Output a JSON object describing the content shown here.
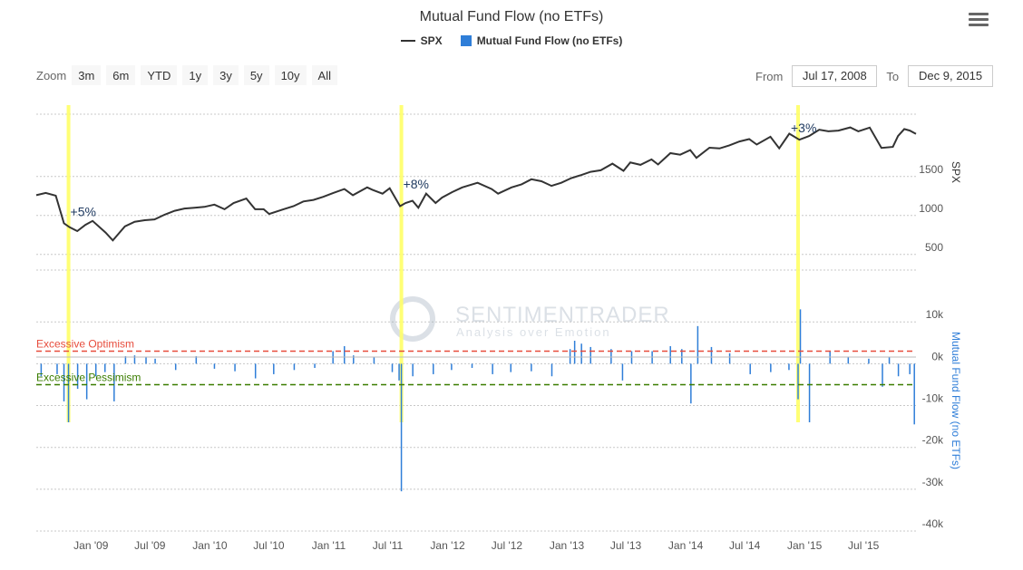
{
  "header": {
    "title": "Mutual Fund Flow (no ETFs)",
    "menu_icon": "hamburger-menu-icon"
  },
  "legend": [
    {
      "label": "SPX",
      "color": "#333333",
      "shape": "line"
    },
    {
      "label": "Mutual Fund Flow (no ETFs)",
      "color": "#2f7ed8",
      "shape": "box"
    }
  ],
  "zoom": {
    "label": "Zoom",
    "buttons": [
      "3m",
      "6m",
      "YTD",
      "1y",
      "3y",
      "5y",
      "10y",
      "All"
    ]
  },
  "range": {
    "from_label": "From",
    "from_value": "Jul 17, 2008",
    "to_label": "To",
    "to_value": "Dec 9, 2015"
  },
  "watermark": {
    "name": "SENTIMENTRADER",
    "tagline": "Analysis over Emotion"
  },
  "chart_data": [
    {
      "type": "line",
      "name": "SPX",
      "ylabel": "SPX",
      "y_ticks": [
        500,
        1000,
        1500
      ],
      "ylim": [
        300,
        2300
      ],
      "color": "#333333",
      "x": [
        "2008-07-17",
        "2008-08-15",
        "2008-09-15",
        "2008-10-10",
        "2008-10-27",
        "2008-11-20",
        "2008-12-15",
        "2009-01-06",
        "2009-02-15",
        "2009-03-09",
        "2009-04-15",
        "2009-05-15",
        "2009-06-15",
        "2009-07-15",
        "2009-08-15",
        "2009-09-15",
        "2009-10-15",
        "2009-11-15",
        "2009-12-15",
        "2010-01-15",
        "2010-02-15",
        "2010-03-15",
        "2010-04-23",
        "2010-05-20",
        "2010-06-15",
        "2010-07-02",
        "2010-08-15",
        "2010-09-15",
        "2010-10-15",
        "2010-11-15",
        "2010-12-15",
        "2011-01-15",
        "2011-02-18",
        "2011-03-16",
        "2011-04-29",
        "2011-05-15",
        "2011-06-15",
        "2011-07-07",
        "2011-08-08",
        "2011-08-25",
        "2011-09-15",
        "2011-10-03",
        "2011-10-27",
        "2011-11-25",
        "2011-12-15",
        "2012-01-15",
        "2012-02-15",
        "2012-04-02",
        "2012-05-15",
        "2012-06-04",
        "2012-07-15",
        "2012-08-15",
        "2012-09-14",
        "2012-10-15",
        "2012-11-15",
        "2012-12-15",
        "2013-01-15",
        "2013-02-15",
        "2013-03-15",
        "2013-04-15",
        "2013-05-21",
        "2013-06-24",
        "2013-07-15",
        "2013-08-15",
        "2013-09-18",
        "2013-10-08",
        "2013-11-15",
        "2013-12-15",
        "2014-01-15",
        "2014-02-03",
        "2014-03-15",
        "2014-04-15",
        "2014-05-15",
        "2014-06-15",
        "2014-07-15",
        "2014-08-07",
        "2014-09-18",
        "2014-10-15",
        "2014-11-15",
        "2014-12-16",
        "2015-01-15",
        "2015-02-15",
        "2015-03-15",
        "2015-04-15",
        "2015-05-21",
        "2015-06-15",
        "2015-07-20",
        "2015-08-25",
        "2015-09-29",
        "2015-10-15",
        "2015-11-03",
        "2015-11-20",
        "2015-12-09"
      ],
      "values": [
        1260,
        1290,
        1255,
        900,
        850,
        800,
        880,
        930,
        780,
        680,
        860,
        920,
        940,
        950,
        1010,
        1060,
        1090,
        1100,
        1110,
        1140,
        1080,
        1160,
        1217,
        1080,
        1080,
        1020,
        1080,
        1120,
        1180,
        1200,
        1240,
        1290,
        1340,
        1260,
        1360,
        1330,
        1280,
        1350,
        1120,
        1160,
        1190,
        1100,
        1280,
        1160,
        1230,
        1300,
        1360,
        1420,
        1340,
        1280,
        1360,
        1400,
        1465,
        1440,
        1380,
        1420,
        1480,
        1520,
        1560,
        1580,
        1665,
        1573,
        1680,
        1650,
        1720,
        1655,
        1800,
        1780,
        1840,
        1740,
        1870,
        1860,
        1900,
        1950,
        1980,
        1910,
        2010,
        1862,
        2050,
        1972,
        2020,
        2100,
        2080,
        2090,
        2130,
        2080,
        2128,
        1867,
        1880,
        2020,
        2109,
        2090,
        2047
      ]
    },
    {
      "type": "bar",
      "name": "Mutual Fund Flow (no ETFs)",
      "ylabel": "Mutual Fund Flow (no ETFs)",
      "y_ticks": [
        -40000,
        -30000,
        -20000,
        -10000,
        0,
        10000
      ],
      "y_tick_labels": [
        "-40k",
        "-30k",
        "-20k",
        "-10k",
        "0k",
        "10k"
      ],
      "ylim": [
        -40000,
        12000
      ],
      "color": "#2f7ed8",
      "x": [
        "2008-08-01",
        "2008-09-19",
        "2008-10-10",
        "2008-10-24",
        "2008-11-21",
        "2008-12-19",
        "2009-01-16",
        "2009-02-13",
        "2009-03-13",
        "2009-04-17",
        "2009-05-15",
        "2009-06-19",
        "2009-07-17",
        "2009-09-18",
        "2009-11-20",
        "2010-01-15",
        "2010-03-19",
        "2010-05-21",
        "2010-07-16",
        "2010-09-17",
        "2010-11-19",
        "2011-01-14",
        "2011-02-18",
        "2011-03-18",
        "2011-05-20",
        "2011-07-15",
        "2011-08-05",
        "2011-08-12",
        "2011-09-16",
        "2011-11-18",
        "2012-01-13",
        "2012-03-16",
        "2012-05-18",
        "2012-07-13",
        "2012-09-14",
        "2012-11-16",
        "2013-01-11",
        "2013-01-25",
        "2013-02-15",
        "2013-03-15",
        "2013-05-17",
        "2013-06-21",
        "2013-07-19",
        "2013-09-20",
        "2013-11-15",
        "2013-12-20",
        "2014-01-17",
        "2014-02-07",
        "2014-03-21",
        "2014-05-16",
        "2014-07-18",
        "2014-09-19",
        "2014-11-14",
        "2014-12-12",
        "2014-12-19",
        "2015-01-16",
        "2015-03-20",
        "2015-05-15",
        "2015-07-17",
        "2015-08-28",
        "2015-09-18",
        "2015-10-16",
        "2015-11-20",
        "2015-12-04"
      ],
      "values": [
        -3000,
        -2500,
        -9000,
        -14000,
        -6000,
        -8500,
        -3000,
        -2000,
        -9000,
        1800,
        2000,
        1500,
        1200,
        -1500,
        1800,
        -1200,
        -1800,
        -3500,
        -2500,
        -1500,
        -1000,
        3000,
        4200,
        2000,
        1500,
        -2000,
        -4000,
        -30500,
        -3000,
        -2500,
        -1500,
        -1000,
        -2500,
        -2000,
        -1800,
        -3000,
        3500,
        5500,
        4800,
        4000,
        3500,
        -4000,
        3000,
        3000,
        4200,
        3500,
        -9500,
        9000,
        4000,
        2500,
        -2500,
        -2000,
        -1500,
        -8500,
        13000,
        -14000,
        3000,
        1500,
        1200,
        -5500,
        1500,
        -3000,
        -2500,
        -14500
      ]
    },
    {
      "type": "annotations",
      "threshold_lines": [
        {
          "label": "Excessive Optimism",
          "value": 3000,
          "color": "#e74c3c"
        },
        {
          "label": "Excessive Pessimism",
          "value": -5000,
          "color": "#3a7d00"
        }
      ],
      "highlights": [
        {
          "date": "2008-10-24",
          "label": "+5%"
        },
        {
          "date": "2011-08-12",
          "label": "+8%"
        },
        {
          "date": "2014-12-12",
          "label": "+3%"
        }
      ],
      "x_tick_labels": [
        "Jan '09",
        "Jul '09",
        "Jan '10",
        "Jul '10",
        "Jan '11",
        "Jul '11",
        "Jan '12",
        "Jul '12",
        "Jan '13",
        "Jul '13",
        "Jan '14",
        "Jul '14",
        "Jan '15",
        "Jul '15"
      ],
      "x_ticks": [
        "2009-01-01",
        "2009-07-01",
        "2010-01-01",
        "2010-07-01",
        "2011-01-01",
        "2011-07-01",
        "2012-01-01",
        "2012-07-01",
        "2013-01-01",
        "2013-07-01",
        "2014-01-01",
        "2014-07-01",
        "2015-01-01",
        "2015-07-01"
      ],
      "x_range": [
        "2008-07-17",
        "2015-12-09"
      ],
      "grid": true
    }
  ]
}
